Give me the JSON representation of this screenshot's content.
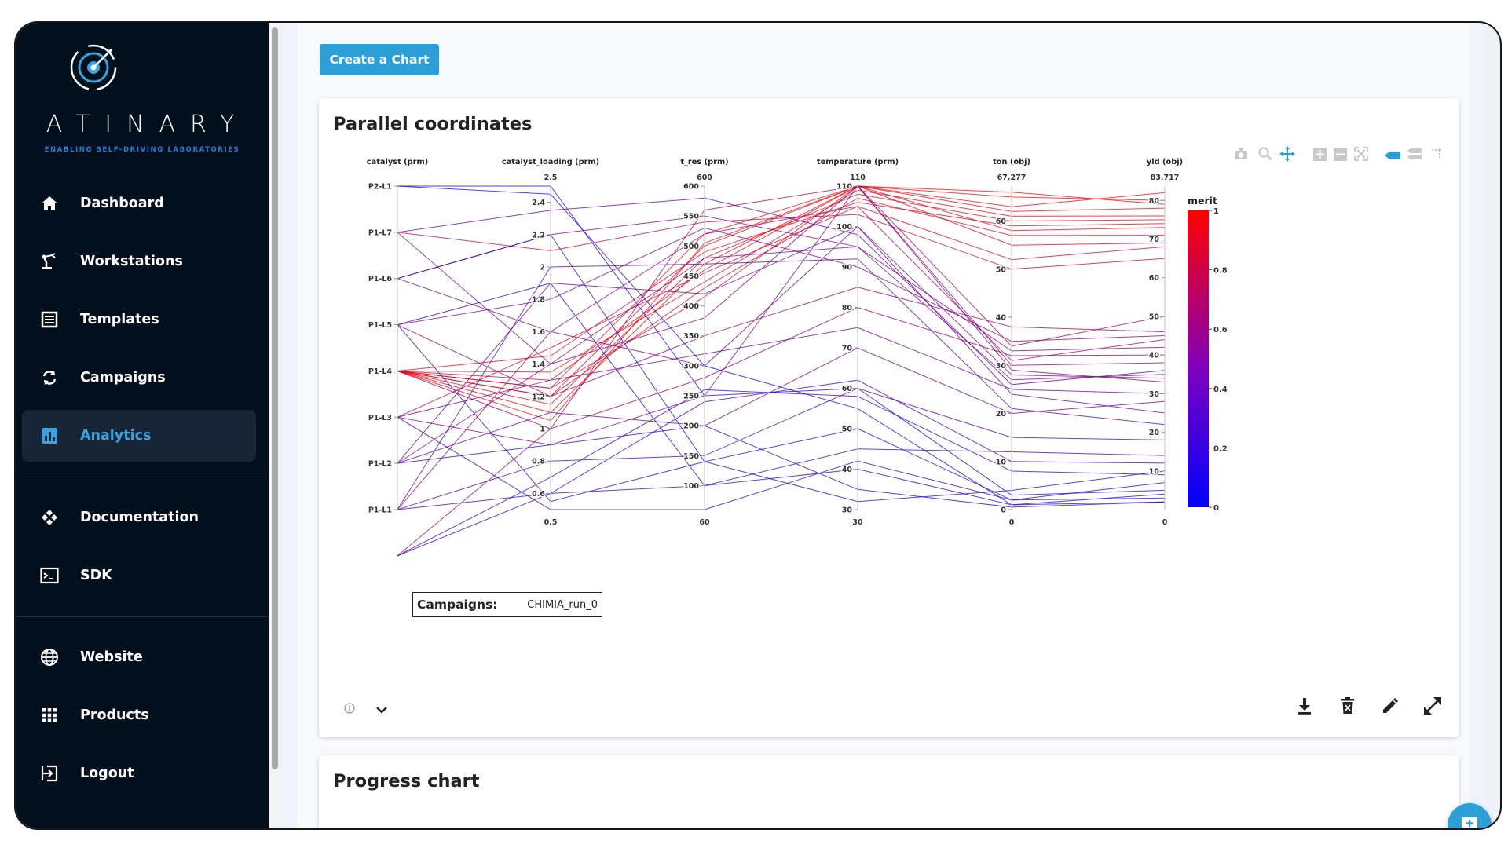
{
  "brand": {
    "name": "ATINARY",
    "tagline": "ENABLING SELF-DRIVING LABORATORIES"
  },
  "sidebar": {
    "items": [
      {
        "label": "Dashboard",
        "icon": "home-icon"
      },
      {
        "label": "Workstations",
        "icon": "robot-arm-icon"
      },
      {
        "label": "Templates",
        "icon": "list-icon"
      },
      {
        "label": "Campaigns",
        "icon": "refresh-icon"
      },
      {
        "label": "Analytics",
        "icon": "bar-chart-icon",
        "active": true
      },
      {
        "label": "Documentation",
        "icon": "docs-icon"
      },
      {
        "label": "SDK",
        "icon": "terminal-icon"
      },
      {
        "label": "Website",
        "icon": "globe-icon"
      },
      {
        "label": "Products",
        "icon": "grid-icon"
      },
      {
        "label": "Logout",
        "icon": "logout-icon"
      }
    ]
  },
  "toolbar": {
    "create_chart_label": "Create a Chart"
  },
  "cards": {
    "parallel": {
      "title": "Parallel coordinates",
      "campaigns_label": "Campaigns:",
      "campaigns_value": "CHIMIA_run_0",
      "modebar_icons": [
        "camera-icon",
        "zoom-icon",
        "pan-icon",
        "zoom-in-icon",
        "zoom-out-icon",
        "autoscale-icon",
        "hover-closest-icon",
        "hover-compare-icon",
        "spike-lines-icon"
      ],
      "footer_icons": [
        "info-icon",
        "chevron-down-icon",
        "download-icon",
        "delete-icon",
        "edit-icon",
        "expand-icon"
      ]
    },
    "progress": {
      "title": "Progress chart"
    }
  },
  "chart_data": {
    "type": "parallel_coordinates",
    "colorbar": {
      "title": "merit",
      "range": [
        0,
        1
      ],
      "ticks": [
        "0",
        "0.2",
        "0.4",
        "0.6",
        "0.8",
        "1"
      ],
      "colors": [
        "#0000ff",
        "#ff0000"
      ]
    },
    "dimensions": [
      {
        "label": "catalyst (prm)",
        "type": "categorical",
        "categories": [
          "P2-L1",
          "P1-L7",
          "P1-L6",
          "P1-L5",
          "P1-L4",
          "P1-L3",
          "P1-L2",
          "P1-L1"
        ],
        "ticks": [
          "P2-L1",
          "P1-L7",
          "P1-L6",
          "P1-L5",
          "P1-L4",
          "P1-L3",
          "P1-L2",
          "P1-L1"
        ]
      },
      {
        "label": "catalyst_loading (prm)",
        "range": [
          0.5,
          2.5
        ],
        "max_label": "2.5",
        "min_label": "0.5",
        "ticks": [
          "2.4",
          "2.2",
          "2",
          "1.8",
          "1.6",
          "1.4",
          "1.2",
          "1",
          "0.8",
          "0.6"
        ],
        "tick_values": [
          2.4,
          2.2,
          2,
          1.8,
          1.6,
          1.4,
          1.2,
          1,
          0.8,
          0.6
        ]
      },
      {
        "label": "t_res (prm)",
        "range": [
          60,
          600
        ],
        "max_label": "600",
        "min_label": "60",
        "ticks": [
          "600",
          "550",
          "500",
          "450",
          "400",
          "350",
          "300",
          "250",
          "200",
          "150",
          "100"
        ],
        "tick_values": [
          600,
          550,
          500,
          450,
          400,
          350,
          300,
          250,
          200,
          150,
          100
        ]
      },
      {
        "label": "temperature (prm)",
        "range": [
          30,
          110
        ],
        "max_label": "110",
        "min_label": "30",
        "ticks": [
          "110",
          "100",
          "90",
          "80",
          "70",
          "60",
          "50",
          "40",
          "30"
        ],
        "tick_values": [
          110,
          100,
          90,
          80,
          70,
          60,
          50,
          40,
          30
        ]
      },
      {
        "label": "ton (obj)",
        "range": [
          0,
          67.277
        ],
        "max_label": "67.277",
        "min_label": "0",
        "ticks": [
          "60",
          "50",
          "40",
          "30",
          "20",
          "10",
          "0"
        ],
        "tick_values": [
          60,
          50,
          40,
          30,
          20,
          10,
          0
        ]
      },
      {
        "label": "yld (obj)",
        "range": [
          0,
          83.717
        ],
        "max_label": "83.717",
        "min_label": "0",
        "ticks": [
          "80",
          "70",
          "60",
          "50",
          "40",
          "30",
          "20",
          "10"
        ],
        "tick_values": [
          80,
          70,
          60,
          50,
          40,
          30,
          20,
          10
        ]
      }
    ],
    "lines": [
      {
        "values": [
          4,
          1.2,
          500,
          110,
          62,
          78
        ],
        "merit": 0.95
      },
      {
        "values": [
          4,
          1.25,
          520,
          110,
          65,
          80
        ],
        "merit": 0.97
      },
      {
        "values": [
          4,
          1.15,
          480,
          108,
          60,
          75
        ],
        "merit": 0.92
      },
      {
        "values": [
          4,
          1.3,
          460,
          110,
          58,
          73
        ],
        "merit": 0.9
      },
      {
        "values": [
          4,
          1.1,
          470,
          110,
          63,
          82
        ],
        "merit": 0.96
      },
      {
        "values": [
          4,
          1.35,
          440,
          109,
          61,
          76
        ],
        "merit": 0.93
      },
      {
        "values": [
          4,
          1.2,
          430,
          107,
          57,
          71
        ],
        "merit": 0.88
      },
      {
        "values": [
          4,
          1.05,
          505,
          110,
          66,
          79
        ],
        "merit": 0.98
      },
      {
        "values": [
          4,
          1.45,
          490,
          106,
          59,
          74
        ],
        "merit": 0.91
      },
      {
        "values": [
          4,
          1.25,
          415,
          110,
          55,
          69
        ],
        "merit": 0.86
      },
      {
        "values": [
          5,
          1.5,
          455,
          105,
          52,
          68
        ],
        "merit": 0.84
      },
      {
        "values": [
          1,
          2.1,
          540,
          103,
          50,
          65
        ],
        "merit": 0.8
      },
      {
        "values": [
          1,
          1.4,
          380,
          110,
          30,
          38
        ],
        "merit": 0.55
      },
      {
        "values": [
          2,
          2.2,
          550,
          95,
          33,
          42
        ],
        "merit": 0.5
      },
      {
        "values": [
          2,
          1.6,
          300,
          100,
          28,
          34
        ],
        "merit": 0.45
      },
      {
        "values": [
          3,
          1.8,
          530,
          90,
          35,
          45
        ],
        "merit": 0.48
      },
      {
        "values": [
          3,
          1.2,
          350,
          85,
          38,
          46
        ],
        "merit": 0.6
      },
      {
        "values": [
          4,
          1.0,
          280,
          80,
          32,
          40
        ],
        "merit": 0.58
      },
      {
        "values": [
          5,
          1.3,
          320,
          75,
          25,
          30
        ],
        "merit": 0.42
      },
      {
        "values": [
          5,
          0.9,
          250,
          110,
          29,
          33
        ],
        "merit": 0.5
      },
      {
        "values": [
          6,
          1.1,
          200,
          70,
          20,
          28
        ],
        "merit": 0.4
      },
      {
        "values": [
          6,
          1.4,
          480,
          95,
          27,
          35
        ],
        "merit": 0.52
      },
      {
        "values": [
          7,
          0.8,
          150,
          60,
          15,
          18
        ],
        "merit": 0.3
      },
      {
        "values": [
          7,
          1.6,
          520,
          105,
          31,
          44
        ],
        "merit": 0.62
      },
      {
        "values": [
          8,
          0.6,
          100,
          45,
          12,
          14
        ],
        "merit": 0.25
      },
      {
        "values": [
          8,
          1.0,
          560,
          110,
          34,
          50
        ],
        "merit": 0.65
      },
      {
        "values": [
          0,
          2.5,
          250,
          60,
          3,
          5
        ],
        "merit": 0.1
      },
      {
        "values": [
          0,
          2.45,
          300,
          55,
          1,
          4
        ],
        "merit": 0.08
      },
      {
        "values": [
          2,
          2.2,
          140,
          50,
          2,
          3
        ],
        "merit": 0.12
      },
      {
        "values": [
          3,
          1.9,
          100,
          40,
          1,
          2
        ],
        "merit": 0.15
      },
      {
        "values": [
          6,
          0.9,
          200,
          35,
          0.5,
          2
        ],
        "merit": 0.1
      },
      {
        "values": [
          7,
          0.6,
          240,
          62,
          10,
          12
        ],
        "merit": 0.2
      },
      {
        "values": [
          8,
          0.7,
          260,
          58,
          8,
          9
        ],
        "merit": 0.18
      },
      {
        "values": [
          5,
          0.5,
          60,
          42,
          2,
          7
        ],
        "merit": 0.15
      },
      {
        "values": [
          1,
          2.35,
          580,
          98,
          26,
          36
        ],
        "merit": 0.35
      },
      {
        "values": [
          3,
          0.55,
          140,
          32,
          4,
          10
        ],
        "merit": 0.14
      },
      {
        "values": [
          6,
          1.9,
          420,
          100,
          24,
          25
        ],
        "merit": 0.38
      },
      {
        "values": [
          7,
          2.0,
          470,
          92,
          21,
          22
        ],
        "merit": 0.33
      }
    ]
  }
}
